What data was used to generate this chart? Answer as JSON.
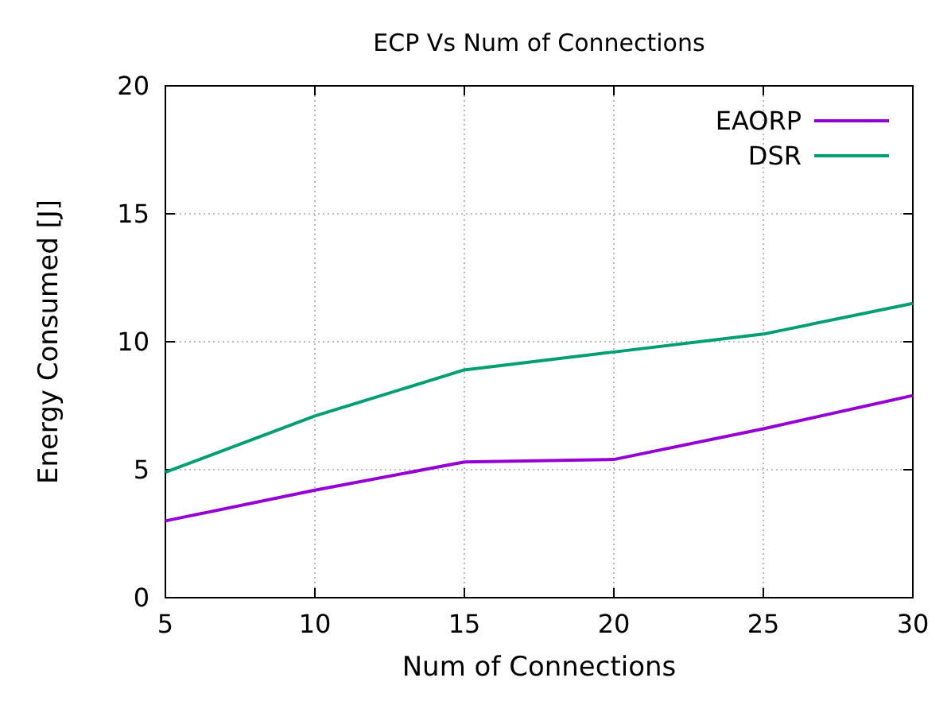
{
  "chart_data": {
    "type": "line",
    "title": "ECP Vs Num of Connections",
    "xlabel": "Num of Connections",
    "ylabel": "Energy Consumed [J]",
    "x": [
      5,
      10,
      15,
      20,
      25,
      30
    ],
    "series": [
      {
        "name": "EAORP",
        "color": "#9400d3",
        "values": [
          3.0,
          4.2,
          5.3,
          5.4,
          6.6,
          7.9
        ]
      },
      {
        "name": "DSR",
        "color": "#009e73",
        "values": [
          4.9,
          7.1,
          8.9,
          9.6,
          10.3,
          11.5
        ]
      }
    ],
    "xlim": [
      5,
      30
    ],
    "xticks": [
      5,
      10,
      15,
      20,
      25,
      30
    ],
    "ylim": [
      0,
      20
    ],
    "yticks": [
      0,
      5,
      10,
      15,
      20
    ],
    "grid": true,
    "legend": "top right",
    "line_style": "solid",
    "marker": "none"
  }
}
